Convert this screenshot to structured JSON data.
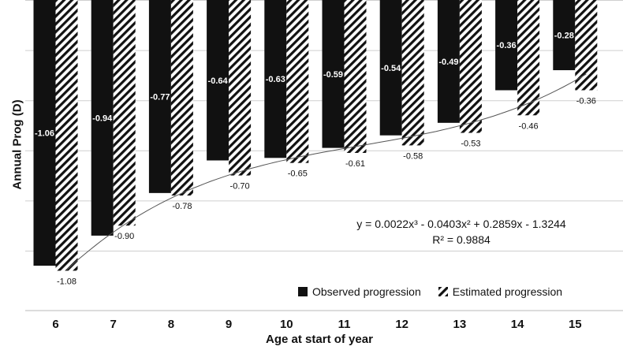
{
  "chart_data": {
    "type": "bar",
    "title": "",
    "xlabel": "Age at start of year",
    "ylabel": "Annual Prog (D)",
    "categories": [
      "6",
      "7",
      "8",
      "9",
      "10",
      "11",
      "12",
      "13",
      "14",
      "15"
    ],
    "series": [
      {
        "name": "Observed progression",
        "fill": "solid",
        "color": "#111111",
        "values": [
          -1.06,
          -0.94,
          -0.77,
          -0.64,
          -0.63,
          -0.59,
          -0.54,
          -0.49,
          -0.36,
          -0.28
        ],
        "labels": [
          "-1.06",
          "-0.94",
          "-0.77",
          "-0.64",
          "-0.63",
          "-0.59",
          "-0.54",
          "-0.49",
          "-0.36",
          "-0.28"
        ]
      },
      {
        "name": "Estimated progression",
        "fill": "hatched",
        "color": "#111111",
        "values": [
          -1.08,
          -0.9,
          -0.78,
          -0.7,
          -0.65,
          -0.61,
          -0.58,
          -0.53,
          -0.46,
          -0.36
        ],
        "labels": [
          "-1.08",
          "-0.90",
          "-0.78",
          "-0.70",
          "-0.65",
          "-0.61",
          "-0.58",
          "-0.53",
          "-0.46",
          "-0.36"
        ]
      }
    ],
    "trendline": {
      "type": "polynomial-3",
      "coefficients": [
        0.0022,
        -0.0403,
        0.2859,
        -1.3244
      ]
    },
    "equation_line1": "y = 0.0022x³ - 0.0403x² + 0.2859x - 1.3244",
    "equation_line2": "R² = 0.9884",
    "ylim": [
      -1.1,
      0
    ],
    "grid": true,
    "legend_position": "bottom-right"
  }
}
